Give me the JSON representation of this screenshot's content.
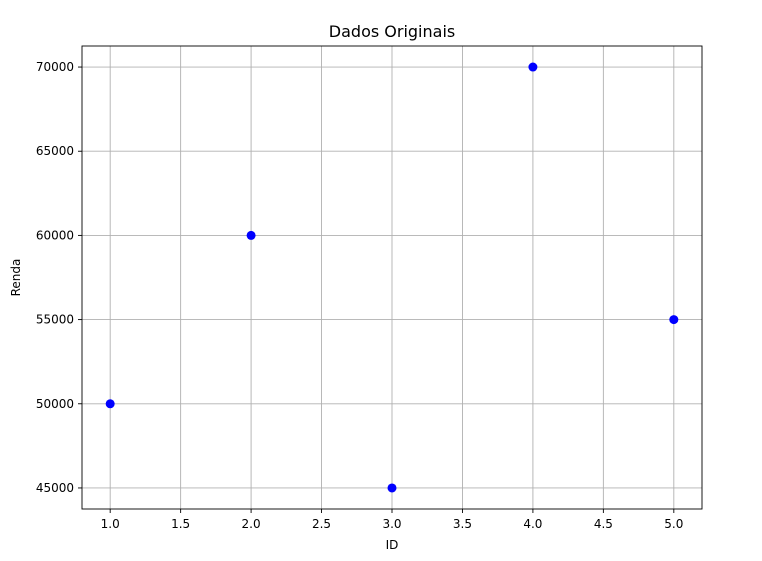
{
  "chart_data": {
    "type": "scatter",
    "title": "Dados Originais",
    "xlabel": "ID",
    "ylabel": "Renda",
    "xlim": [
      0.8,
      5.2
    ],
    "ylim": [
      43750,
      71250
    ],
    "x_ticks": [
      1.0,
      1.5,
      2.0,
      2.5,
      3.0,
      3.5,
      4.0,
      4.5,
      5.0
    ],
    "x_tick_labels": [
      "1.0",
      "1.5",
      "2.0",
      "2.5",
      "3.0",
      "3.5",
      "4.0",
      "4.5",
      "5.0"
    ],
    "y_ticks": [
      45000,
      50000,
      55000,
      60000,
      65000,
      70000
    ],
    "y_tick_labels": [
      "45000",
      "50000",
      "55000",
      "60000",
      "65000",
      "70000"
    ],
    "grid": true,
    "marker_color": "#0000ff",
    "points": [
      {
        "x": 1,
        "y": 50000
      },
      {
        "x": 2,
        "y": 60000
      },
      {
        "x": 3,
        "y": 45000
      },
      {
        "x": 4,
        "y": 70000
      },
      {
        "x": 5,
        "y": 55000
      }
    ]
  }
}
